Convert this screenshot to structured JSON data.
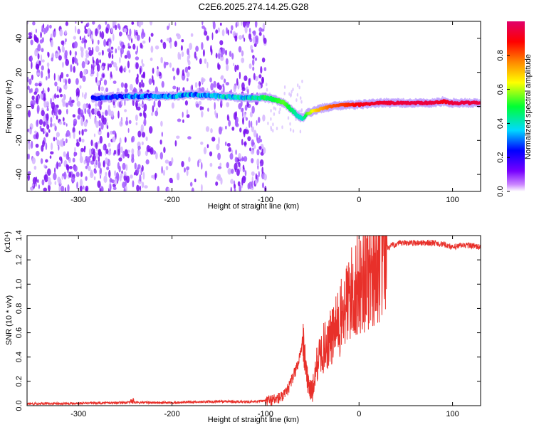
{
  "chart_data": [
    {
      "type": "heatmap",
      "title": "C2E6.2025.274.14.25.G28",
      "xlabel": "Height of straight line (km)",
      "ylabel": "Frequency (Hz)",
      "xlim": [
        -355,
        130
      ],
      "ylim": [
        -50,
        50
      ],
      "x_ticks": [
        -300,
        -200,
        -100,
        0,
        100
      ],
      "x_tick_labels": [
        "-300",
        "-200",
        "-100",
        "0",
        "100"
      ],
      "y_ticks": [
        -40,
        -20,
        0,
        20,
        40
      ],
      "y_tick_labels": [
        "-40",
        "-20",
        "0",
        "20",
        "40"
      ],
      "colorbar": {
        "label": "Normalized spectral amplitude",
        "range": [
          0,
          1
        ],
        "ticks": [
          0.0,
          0.2,
          0.4,
          0.6,
          0.8
        ],
        "tick_labels": [
          "0.0",
          "0.2",
          "0.4",
          "0.6",
          "0.8"
        ],
        "colors": [
          "#ffffff",
          "#cc88ff",
          "#7700ff",
          "#0000ff",
          "#00d9ff",
          "#00ff33",
          "#ffff00",
          "#ff8800",
          "#ff0000",
          "#e0006a"
        ]
      },
      "ridge": {
        "x": [
          -280,
          -250,
          -200,
          -180,
          -150,
          -120,
          -100,
          -90,
          -80,
          -70,
          -65,
          -60,
          -55,
          -45,
          -30,
          -10,
          0,
          20,
          50,
          80,
          90,
          100,
          130
        ],
        "freq_hz": [
          5,
          6,
          6,
          7,
          6,
          5,
          5,
          4,
          2,
          -3,
          -6,
          -7,
          -4,
          -2,
          0,
          1,
          1,
          2,
          2,
          2,
          3,
          2,
          2
        ],
        "amplitude": [
          0.25,
          0.3,
          0.33,
          0.35,
          0.35,
          0.38,
          0.45,
          0.5,
          0.55,
          0.45,
          0.4,
          0.4,
          0.55,
          0.7,
          0.8,
          0.85,
          0.9,
          0.93,
          0.95,
          0.95,
          0.9,
          0.95,
          0.95
        ]
      }
    },
    {
      "type": "line",
      "title": "",
      "xlabel": "Height of straight line (km)",
      "ylabel": "SNR (10 * v/v)",
      "y_scale_label": "(x10⁴)",
      "color": "#e8302a",
      "xlim": [
        -355,
        130
      ],
      "ylim": [
        0,
        1.4
      ],
      "x_ticks": [
        -300,
        -200,
        -100,
        0,
        100
      ],
      "x_tick_labels": [
        "-300",
        "-200",
        "-100",
        "0",
        "100"
      ],
      "y_ticks": [
        0.0,
        0.2,
        0.4,
        0.6,
        0.8,
        1.0,
        1.2,
        1.4
      ],
      "y_tick_labels": [
        "0.0",
        "0.2",
        "0.4",
        "0.6",
        "0.8",
        "1.0",
        "1.2",
        "1.4"
      ],
      "series": [
        {
          "name": "SNR",
          "x": [
            -355,
            -300,
            -250,
            -200,
            -150,
            -120,
            -100,
            -90,
            -80,
            -75,
            -70,
            -65,
            -60,
            -55,
            -50,
            -45,
            -40,
            -30,
            -20,
            -10,
            0,
            10,
            20,
            30,
            40,
            50,
            60,
            80,
            95,
            100,
            110,
            120,
            130
          ],
          "y": [
            0.015,
            0.02,
            0.025,
            0.025,
            0.035,
            0.03,
            0.04,
            0.05,
            0.08,
            0.15,
            0.25,
            0.35,
            0.55,
            0.2,
            0.1,
            0.35,
            0.45,
            0.55,
            0.7,
            0.9,
            1.0,
            1.1,
            1.2,
            1.3,
            1.33,
            1.34,
            1.34,
            1.34,
            1.32,
            1.3,
            1.32,
            1.32,
            1.3
          ]
        }
      ]
    }
  ]
}
